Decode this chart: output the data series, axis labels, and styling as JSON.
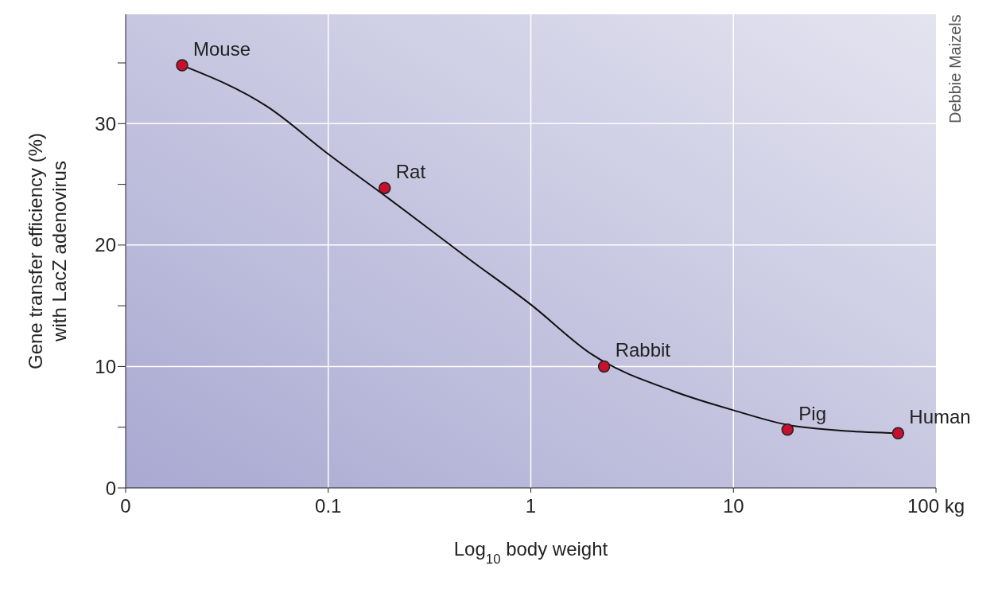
{
  "chart_data": {
    "type": "scatter",
    "xlabel": "Log$_{10}$ body weight",
    "ylabel": "Gene transfer efficiency (%)\nwith LacZ adenovirus",
    "log": "x",
    "xlim": [
      0.01,
      100
    ],
    "xticks": [
      {
        "value": 0.01,
        "label": "0"
      },
      {
        "value": 0.1,
        "label": "0.1"
      },
      1,
      10,
      {
        "value": 100,
        "label": "100 kg"
      }
    ],
    "ylim": [
      0,
      39
    ],
    "yticks": [
      0,
      {
        "value": 5,
        "label": null
      },
      10,
      {
        "value": 15,
        "label": null
      },
      20,
      {
        "value": 25,
        "label": null
      },
      30,
      {
        "value": 35,
        "label": null
      }
    ],
    "grid": true,
    "marker": "circle",
    "series": [
      {
        "type": "line",
        "color": "#111111",
        "marker": "none",
        "x": [
          0.019,
          0.05,
          0.1,
          0.2,
          0.5,
          1,
          2,
          5,
          10,
          20,
          65
        ],
        "values": [
          34.8,
          31.4,
          27.5,
          23.8,
          18.8,
          15.1,
          11,
          8,
          6.4,
          5.1,
          4.5
        ]
      },
      {
        "color": "#c8102e",
        "x": [
          0.019,
          0.19,
          2.3,
          18.5,
          65
        ],
        "values": [
          34.8,
          24.7,
          10,
          4.8,
          4.5
        ]
      }
    ],
    "annotations": [
      {
        "text": "Mouse",
        "x": 0.019,
        "y": 34.8
      },
      {
        "text": "Rat",
        "x": 0.19,
        "y": 24.7
      },
      {
        "text": "Rabbit",
        "x": 2.3,
        "y": 10
      },
      {
        "text": "Pig",
        "x": 18.5,
        "y": 4.8
      },
      {
        "text": "Human",
        "x": 65,
        "y": 4.5
      },
      "Debbie Maizels"
    ]
  }
}
